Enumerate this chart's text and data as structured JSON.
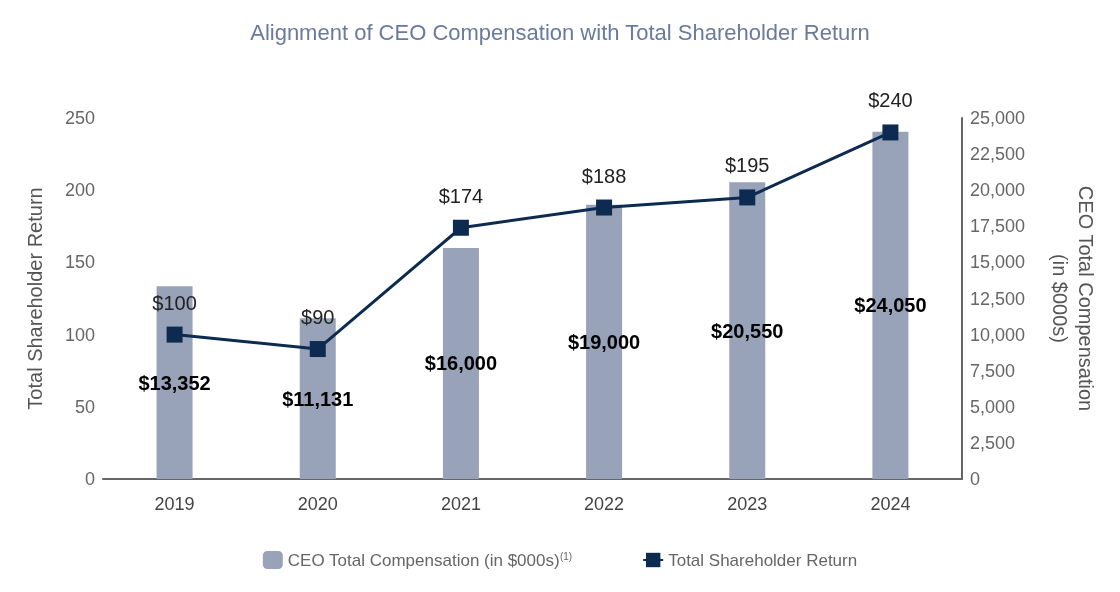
{
  "chart_data": {
    "type": "bar",
    "title": "Alignment of CEO Compensation with Total Shareholder Return",
    "categories": [
      "2019",
      "2020",
      "2021",
      "2022",
      "2023",
      "2024"
    ],
    "ylabel": "Total Shareholder Return",
    "y2label": "CEO Total Compensation\n(in $000s)",
    "series": [
      {
        "name": "CEO Total Compensation (in $000s)$^{(1)}$",
        "axis": "y2",
        "color": "#98a2b8",
        "values": [
          13352,
          11131,
          16000,
          19000,
          20550,
          24050
        ],
        "value_labels": [
          "$13,352",
          "$11,131",
          "$16,000",
          "$19,000",
          "$20,550",
          "$24,050"
        ]
      },
      {
        "name": "Total Shareholder Return",
        "type": "line",
        "color": "#0d2a50",
        "values": [
          100,
          90,
          174,
          188,
          195,
          240
        ],
        "value_labels": [
          "$100",
          "$90",
          "$174",
          "$188",
          "$195",
          "$240"
        ]
      }
    ],
    "ylim": [
      0,
      250
    ],
    "yticks": [
      0,
      50,
      100,
      150,
      200,
      250
    ],
    "y2lim": [
      0,
      25000
    ],
    "y2ticks": [
      0,
      {
        "value": 2500,
        "label": "2,500"
      },
      {
        "value": 5000,
        "label": "5,000"
      },
      {
        "value": 7500,
        "label": "7,500"
      },
      {
        "value": 10000,
        "label": "10,000"
      },
      {
        "value": 12500,
        "label": "12,500"
      },
      {
        "value": 15000,
        "label": "15,000"
      },
      {
        "value": 17500,
        "label": "17,500"
      },
      {
        "value": 20000,
        "label": "20,000"
      },
      {
        "value": 22500,
        "label": "22,500"
      },
      {
        "value": 25000,
        "label": "25,000"
      }
    ],
    "marker": "square",
    "line_style": "solid",
    "legend": "bottom",
    "grid": false
  }
}
